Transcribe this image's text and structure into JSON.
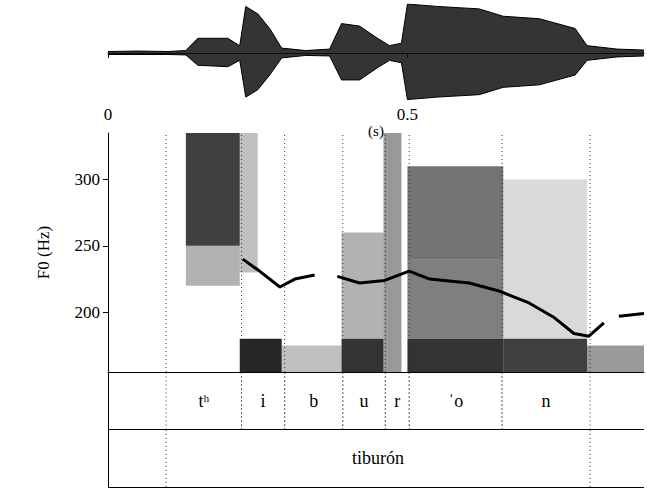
{
  "chart_data": {
    "type": "line",
    "x_label": "(s)",
    "y_label": "F0 (Hz)",
    "xlim": [
      0,
      0.895
    ],
    "xticks": [
      0,
      0.5
    ],
    "ylim": [
      155,
      335
    ],
    "yticks": [
      200,
      250,
      300
    ],
    "grid": false,
    "series": [
      {
        "color": "#000000",
        "line_style": "solid",
        "x": [
          0.225,
          0.253,
          0.287,
          0.312,
          0.345,
          0.36,
          0.383,
          0.42,
          0.462,
          0.503,
          0.537,
          0.603,
          0.653,
          0.703,
          0.745,
          0.778,
          0.803,
          0.828,
          0.84,
          0.853,
          0.895
        ],
        "values": [
          240,
          231,
          219,
          225,
          228,
          null,
          227,
          222,
          224,
          231,
          225,
          222,
          216,
          207,
          196,
          184,
          182,
          192,
          null,
          197,
          199
        ]
      }
    ],
    "waveform": {
      "ylim": [
        -1,
        1
      ],
      "t": [
        0,
        0.05,
        0.1,
        0.13,
        0.15,
        0.2,
        0.22,
        0.23,
        0.25,
        0.27,
        0.29,
        0.33,
        0.37,
        0.39,
        0.42,
        0.45,
        0.47,
        0.49,
        0.5,
        0.55,
        0.62,
        0.66,
        0.72,
        0.78,
        0.8,
        0.85,
        0.895
      ],
      "upper": [
        0.03,
        0.04,
        0.03,
        0.05,
        0.3,
        0.3,
        0.15,
        0.95,
        0.8,
        0.5,
        0.1,
        0.05,
        0.08,
        0.6,
        0.55,
        0.3,
        0.15,
        0.2,
        1.0,
        0.95,
        0.9,
        0.75,
        0.7,
        0.5,
        0.15,
        0.08,
        0.06
      ],
      "lower": [
        -0.03,
        -0.03,
        -0.03,
        -0.04,
        -0.25,
        -0.28,
        -0.15,
        -0.9,
        -0.75,
        -0.45,
        -0.1,
        -0.05,
        -0.06,
        -0.55,
        -0.55,
        -0.3,
        -0.15,
        -0.2,
        -0.95,
        -0.9,
        -0.85,
        -0.7,
        -0.65,
        -0.45,
        -0.15,
        -0.08,
        -0.06
      ]
    },
    "spectrogram": {
      "cells": [
        [
          0.13,
          0.22,
          250,
          335,
          0.75
        ],
        [
          0.13,
          0.22,
          220,
          250,
          0.3
        ],
        [
          0.22,
          0.29,
          155,
          180,
          0.85
        ],
        [
          0.22,
          0.25,
          230,
          335,
          0.25
        ],
        [
          0.29,
          0.39,
          155,
          175,
          0.25
        ],
        [
          0.39,
          0.46,
          155,
          180,
          0.8
        ],
        [
          0.39,
          0.46,
          180,
          260,
          0.3
        ],
        [
          0.46,
          0.49,
          155,
          335,
          0.4
        ],
        [
          0.5,
          0.66,
          155,
          180,
          0.8
        ],
        [
          0.5,
          0.66,
          180,
          240,
          0.5
        ],
        [
          0.5,
          0.66,
          240,
          310,
          0.55
        ],
        [
          0.66,
          0.8,
          155,
          180,
          0.75
        ],
        [
          0.66,
          0.8,
          180,
          300,
          0.15
        ],
        [
          0.8,
          0.895,
          155,
          175,
          0.4
        ]
      ]
    },
    "tiers": [
      {
        "intervals": [
          {
            "start": 0.097,
            "end": 0.223,
            "label": "tʰ"
          },
          {
            "start": 0.223,
            "end": 0.295,
            "label": "i"
          },
          {
            "start": 0.295,
            "end": 0.392,
            "label": "b"
          },
          {
            "start": 0.392,
            "end": 0.463,
            "label": "u"
          },
          {
            "start": 0.463,
            "end": 0.503,
            "label": "r"
          },
          {
            "start": 0.503,
            "end": 0.658,
            "label": "ˈo"
          },
          {
            "start": 0.658,
            "end": 0.805,
            "label": "n"
          }
        ]
      },
      {
        "intervals": [
          {
            "start": 0.097,
            "end": 0.805,
            "label": "tiburón"
          }
        ]
      }
    ]
  }
}
